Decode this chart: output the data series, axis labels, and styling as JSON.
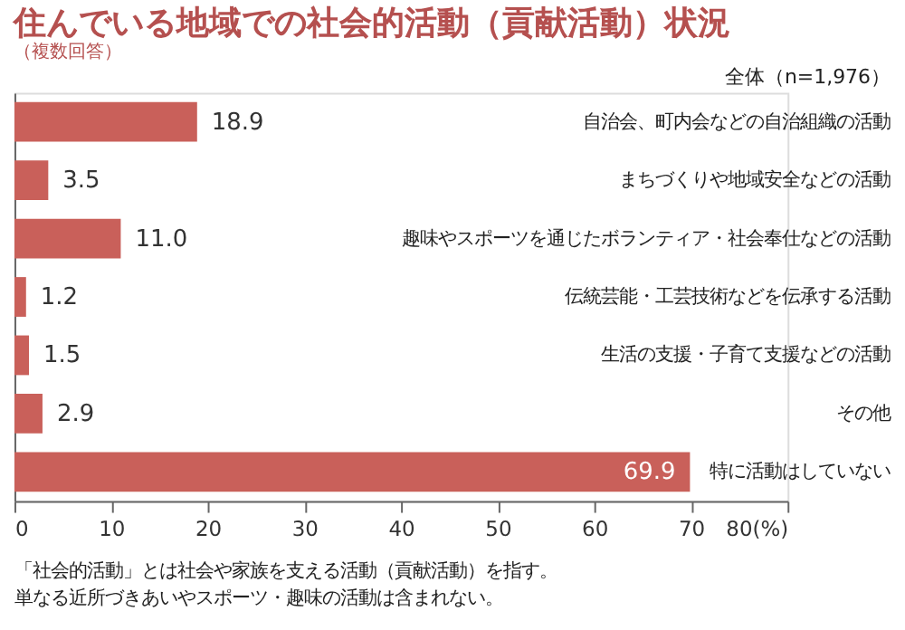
{
  "chart_data": {
    "type": "bar",
    "orientation": "horizontal",
    "title": "住んでいる地域での社会的活動（貢献活動）状況",
    "subtitle": "（複数回答）",
    "categories": [
      "自治会、町内会などの自治組織の活動",
      "まちづくりや地域安全などの活動",
      "趣味やスポーツを通じたボランティア・社会奉仕などの活動",
      "伝統芸能・工芸技術などを伝承する活動",
      "生活の支援・子育て支援などの活動",
      "その他",
      "特に活動はしていない"
    ],
    "values": [
      18.9,
      3.5,
      11.0,
      1.2,
      1.5,
      2.9,
      69.9
    ],
    "color": "#c9605a",
    "value_labels": [
      "18.9",
      "3.5",
      "11.0",
      "1.2",
      "1.5",
      "2.9",
      "69.9"
    ],
    "xlim": [
      0,
      80
    ],
    "xticks": [
      0,
      10,
      20,
      30,
      40,
      50,
      60,
      70,
      {
        "value": 80,
        "label": "80(%)"
      }
    ],
    "grid": false,
    "annotations": [
      "全体（n=1,976）",
      "「社会的活動」とは社会や家族を支える活動（貢献活動）を指す。",
      "単なる近所づきあいやスポーツ・趣味の活動は含まれない。"
    ]
  }
}
